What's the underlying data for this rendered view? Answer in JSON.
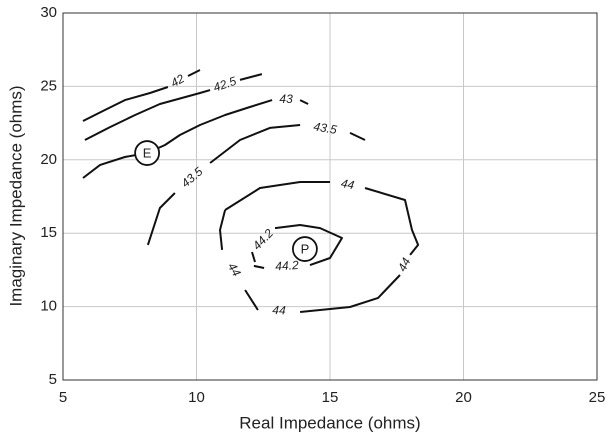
{
  "chart_data": {
    "type": "contour",
    "x_label": "Real Impedance (ohms)",
    "y_label": "Imaginary Impedance (ohms)",
    "xlim": [
      5,
      25
    ],
    "xticks": [
      5,
      10,
      15,
      20,
      25
    ],
    "ylim": [
      5,
      30
    ],
    "yticks": [
      5,
      10,
      15,
      20,
      25,
      30
    ],
    "grid": true,
    "color": "#111111",
    "series": [
      {
        "level": 42,
        "x": [
          5.75,
          6.57,
          7.32,
          8.26,
          8.93,
          null,
          9.68,
          10.13
        ],
        "y": [
          22.64,
          23.39,
          24.07,
          24.55,
          24.96,
          null,
          25.71,
          26.12
        ]
      },
      {
        "level": 42.5,
        "x": [
          5.82,
          6.76,
          7.7,
          8.63,
          10.13,
          10.51,
          null,
          11.63,
          12.45
        ],
        "y": [
          21.35,
          22.23,
          23.05,
          23.8,
          24.55,
          24.75,
          null,
          25.44,
          25.84
        ]
      },
      {
        "level": 43,
        "x": [
          5.75,
          6.39,
          7.32,
          8.15,
          8.82,
          9.38,
          10.13,
          11.07,
          12.0,
          12.83,
          null,
          13.88,
          14.18
        ],
        "y": [
          18.76,
          19.65,
          20.19,
          20.46,
          21.01,
          21.69,
          22.37,
          23.05,
          23.6,
          24.07,
          null,
          24.07,
          23.8
        ]
      },
      {
        "level": 43.5,
        "x": [
          8.18,
          8.63,
          9.19,
          null,
          10.51,
          11.63,
          12.75,
          13.88,
          null,
          15.75,
          16.31
        ],
        "y": [
          14.2,
          16.72,
          17.74,
          null,
          19.78,
          21.35,
          22.17,
          22.37,
          null,
          21.83,
          21.35
        ]
      },
      {
        "level": 44,
        "x": [
          11.07,
          12.38,
          13.88,
          15.0,
          null,
          16.31,
          17.81,
          18.07,
          18.3,
          18.0,
          null,
          17.62,
          16.8,
          15.75,
          13.88,
          null,
          12.3,
          11.82,
          null,
          10.96,
          10.88,
          11.07
        ],
        "y": [
          16.58,
          18.08,
          18.49,
          18.49,
          null,
          18.08,
          17.26,
          15.22,
          14.2,
          13.52,
          null,
          12.15,
          10.59,
          9.97,
          9.63,
          null,
          9.77,
          11.13,
          null,
          13.86,
          15.22,
          16.58
        ]
      },
      {
        "level": 44.2,
        "x": [
          12.19,
          12.08,
          null,
          12.94,
          13.88,
          14.63,
          15.45,
          15.0,
          14.25,
          null,
          12.53,
          12.15
        ],
        "y": [
          13.04,
          13.72,
          null,
          15.35,
          15.56,
          15.35,
          14.67,
          13.31,
          12.83,
          null,
          12.63,
          12.77
        ]
      }
    ],
    "markers": [
      {
        "label": "E",
        "x": 8.15,
        "y": 20.46
      },
      {
        "label": "P",
        "x": 14.06,
        "y": 13.92
      }
    ]
  }
}
